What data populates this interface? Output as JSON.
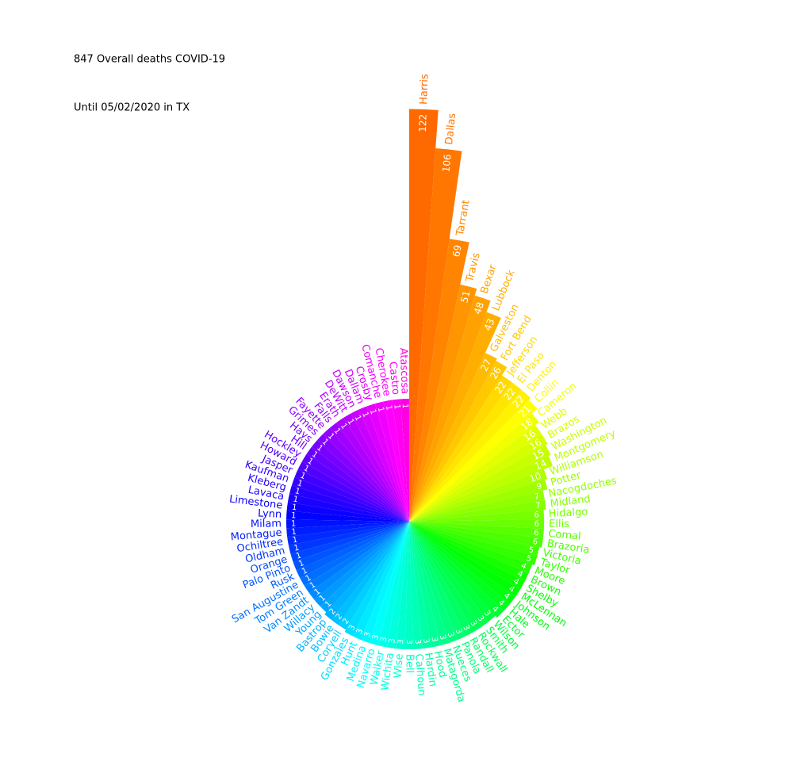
{
  "chart_data": {
    "type": "radial_bar",
    "title": "847 Overall deaths COVID-19",
    "subtitle": "Until 05/02/2020 in TX",
    "categories": [
      "Harris",
      "Dallas",
      "Tarrant",
      "Travis",
      "Bexar",
      "Lubbock",
      "Galveston",
      "Fort Bend",
      "Jefferson",
      "El Paso",
      "Denton",
      "Collin",
      "Cameron",
      "Webb",
      "Brazos",
      "Washington",
      "Montgomery",
      "Williamson",
      "Potter",
      "Nacogdoches",
      "Midland",
      "Hidalgo",
      "Ellis",
      "Comal",
      "Brazoria",
      "Victoria",
      "Taylor",
      "Moore",
      "Brown",
      "Shelby",
      "McLennan",
      "Johnson",
      "Hale",
      "Ector",
      "Wilson",
      "Smith",
      "Rockwall",
      "Randall",
      "Panola",
      "Nueces",
      "Matagorda",
      "Hood",
      "Hardin",
      "Calhoun",
      "Bell",
      "Wise",
      "Wichita",
      "Walker",
      "Navarro",
      "Medina",
      "Hunt",
      "Gonzales",
      "Coryell",
      "Bowie",
      "Bastrop",
      "Young",
      "Willacy",
      "Van Zandt",
      "Tom Green",
      "San Augustine",
      "Rusk",
      "Palo Pinto",
      "Orange",
      "Oldham",
      "Ochiltree",
      "Montague",
      "Milam",
      "Lynn",
      "Limestone",
      "Lavaca",
      "Kleberg",
      "Kaufman",
      "Jasper",
      "Howard",
      "Hockley",
      "Hill",
      "Hays",
      "Grimes",
      "Fayette",
      "Falls",
      "Erath",
      "DeWitt",
      "Dawson",
      "Dallam",
      "Crosby",
      "Comanche",
      "Cherokee",
      "Castro",
      "Atascosa"
    ],
    "values": [
      122,
      106,
      69,
      51,
      48,
      43,
      27,
      26,
      22,
      22,
      22,
      21,
      18,
      16,
      16,
      15,
      14,
      10,
      9,
      7,
      7,
      6,
      6,
      6,
      6,
      5,
      5,
      4,
      4,
      4,
      4,
      4,
      4,
      4,
      3,
      3,
      3,
      3,
      3,
      3,
      3,
      3,
      3,
      3,
      3,
      3,
      3,
      3,
      3,
      3,
      3,
      3,
      2,
      2,
      2,
      1,
      1,
      1,
      1,
      1,
      1,
      1,
      1,
      1,
      1,
      1,
      1,
      1,
      1,
      1,
      1,
      1,
      1,
      1,
      1,
      1,
      1,
      1,
      1,
      1,
      1,
      1,
      1,
      1,
      1,
      1,
      1,
      1,
      1
    ],
    "colors": [
      "hsl(25,100%,50%)",
      "hsl(28,100%,50%)",
      "hsl(31,100%,50%)",
      "hsl(35,100%,50%)",
      "hsl(38,100%,50%)",
      "hsl(41,100%,50%)",
      "hsl(44,100%,50%)",
      "hsl(47,100%,50%)",
      "hsl(51,100%,50%)",
      "hsl(54,100%,50%)",
      "hsl(57,100%,50%)",
      "hsl(60,100%,50%)",
      "hsl(63,100%,50%)",
      "hsl(67,100%,50%)",
      "hsl(70,100%,50%)",
      "hsl(73,100%,50%)",
      "hsl(76,100%,50%)",
      "hsl(79,100%,50%)",
      "hsl(83,100%,50%)",
      "hsl(86,100%,50%)",
      "hsl(89,100%,50%)",
      "hsl(92,100%,50%)",
      "hsl(95,100%,50%)",
      "hsl(99,100%,50%)",
      "hsl(102,100%,50%)",
      "hsl(105,100%,50%)",
      "hsl(108,100%,50%)",
      "hsl(111,100%,50%)",
      "hsl(115,100%,50%)",
      "hsl(118,100%,50%)",
      "hsl(121,100%,50%)",
      "hsl(124,100%,50%)",
      "hsl(127,100%,50%)",
      "hsl(131,100%,50%)",
      "hsl(134,100%,50%)",
      "hsl(137,100%,50%)",
      "hsl(140,100%,50%)",
      "hsl(143,100%,50%)",
      "hsl(147,100%,50%)",
      "hsl(150,100%,50%)",
      "hsl(153,100%,50%)",
      "hsl(156,100%,50%)",
      "hsl(159,100%,50%)",
      "hsl(163,100%,50%)",
      "hsl(166,100%,50%)",
      "hsl(169,100%,50%)",
      "hsl(172,100%,50%)",
      "hsl(175,100%,50%)",
      "hsl(179,100%,50%)",
      "hsl(182,100%,50%)",
      "hsl(185,100%,50%)",
      "hsl(188,100%,50%)",
      "hsl(191,100%,50%)",
      "hsl(195,100%,50%)",
      "hsl(198,100%,50%)",
      "hsl(201,100%,50%)",
      "hsl(204,100%,50%)",
      "hsl(207,100%,50%)",
      "hsl(211,100%,50%)",
      "hsl(214,100%,50%)",
      "hsl(217,100%,50%)",
      "hsl(220,100%,50%)",
      "hsl(223,100%,50%)",
      "hsl(227,100%,50%)",
      "hsl(230,100%,50%)",
      "hsl(233,100%,50%)",
      "hsl(236,100%,50%)",
      "hsl(239,100%,50%)",
      "hsl(243,100%,50%)",
      "hsl(246,100%,50%)",
      "hsl(249,100%,50%)",
      "hsl(252,100%,50%)",
      "hsl(255,100%,50%)",
      "hsl(259,100%,50%)",
      "hsl(262,100%,50%)",
      "hsl(265,100%,50%)",
      "hsl(268,100%,50%)",
      "hsl(271,100%,50%)",
      "hsl(275,100%,50%)",
      "hsl(278,100%,50%)",
      "hsl(281,100%,50%)",
      "hsl(284,100%,50%)",
      "hsl(287,100%,50%)",
      "hsl(291,100%,50%)",
      "hsl(294,100%,50%)",
      "hsl(297,100%,50%)",
      "hsl(300,100%,50%)",
      "hsl(303,100%,50%)",
      "hsl(307,100%,50%)"
    ]
  }
}
